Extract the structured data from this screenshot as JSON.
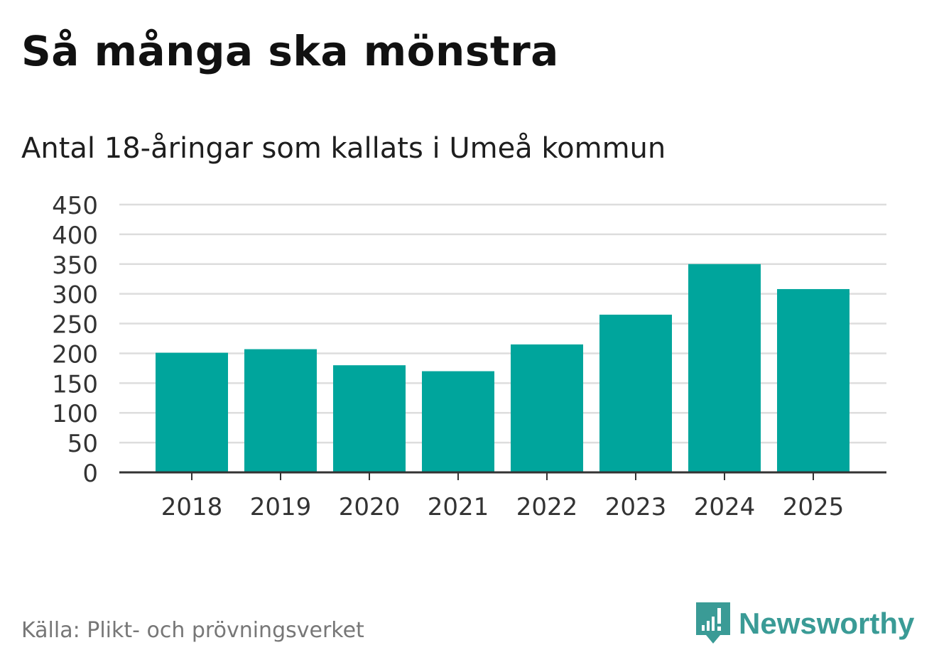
{
  "title": "Så många ska mönstra",
  "subtitle": "Antal 18-åringar som kallats i Umeå kommun",
  "source": "Källa: Plikt- och prövningsverket",
  "brand": {
    "name": "Newsworthy",
    "logo_icon": "newsworthy-logo-icon"
  },
  "colors": {
    "bar": "#00A59C",
    "grid": "#dddddd",
    "axis": "#333333",
    "brand": "#3a9b96"
  },
  "chart_data": {
    "type": "bar",
    "title": "Så många ska mönstra",
    "subtitle": "Antal 18-åringar som kallats i Umeå kommun",
    "categories": [
      "2018",
      "2019",
      "2020",
      "2021",
      "2022",
      "2023",
      "2024",
      "2025"
    ],
    "values": [
      201,
      207,
      180,
      170,
      215,
      265,
      350,
      308
    ],
    "yticks": [
      0,
      50,
      100,
      150,
      200,
      250,
      300,
      350,
      400,
      450
    ],
    "ylim": [
      0,
      450
    ],
    "xlabel": "",
    "ylabel": "",
    "grid": true,
    "legend": "none"
  }
}
